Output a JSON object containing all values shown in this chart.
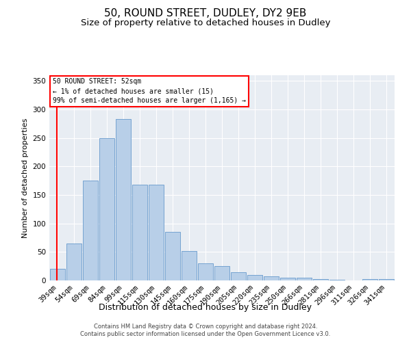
{
  "title1": "50, ROUND STREET, DUDLEY, DY2 9EB",
  "title2": "Size of property relative to detached houses in Dudley",
  "xlabel": "Distribution of detached houses by size in Dudley",
  "ylabel": "Number of detached properties",
  "categories": [
    "39sqm",
    "54sqm",
    "69sqm",
    "84sqm",
    "99sqm",
    "115sqm",
    "130sqm",
    "145sqm",
    "160sqm",
    "175sqm",
    "190sqm",
    "205sqm",
    "220sqm",
    "235sqm",
    "250sqm",
    "266sqm",
    "281sqm",
    "296sqm",
    "311sqm",
    "326sqm",
    "341sqm"
  ],
  "values": [
    20,
    65,
    175,
    250,
    283,
    168,
    168,
    85,
    52,
    30,
    25,
    15,
    10,
    7,
    5,
    5,
    3,
    1,
    0,
    3,
    3
  ],
  "bar_color": "#b8cfe8",
  "bar_edge_color": "#6699cc",
  "vline_color": "red",
  "annotation_text": "50 ROUND STREET: 52sqm\n← 1% of detached houses are smaller (15)\n99% of semi-detached houses are larger (1,165) →",
  "annotation_box_color": "white",
  "annotation_box_edge": "red",
  "ylim": [
    0,
    360
  ],
  "yticks": [
    0,
    50,
    100,
    150,
    200,
    250,
    300,
    350
  ],
  "background_color": "#e8edf3",
  "footer1": "Contains HM Land Registry data © Crown copyright and database right 2024.",
  "footer2": "Contains public sector information licensed under the Open Government Licence v3.0.",
  "title1_fontsize": 11,
  "title2_fontsize": 9.5,
  "tick_fontsize": 7.5,
  "ylabel_fontsize": 8,
  "xlabel_fontsize": 9,
  "annotation_fontsize": 7,
  "footer_fontsize": 6
}
